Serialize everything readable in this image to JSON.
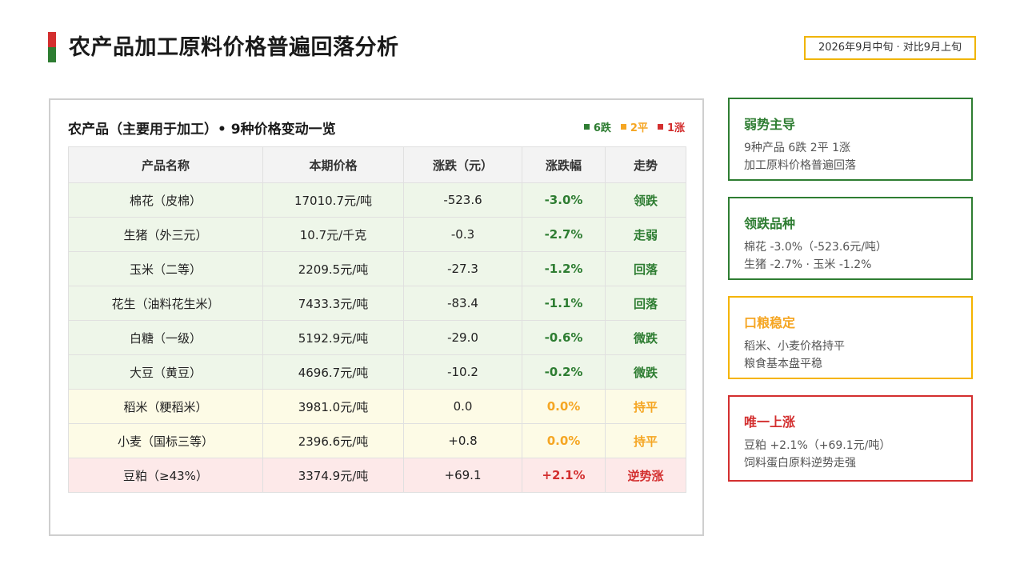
{
  "title": "农产品加工原料价格普遍回落分析",
  "date_badge": "2026年9月中旬 · 对比9月上旬",
  "colors": {
    "down": "#2e7d32",
    "flat": "#f5a623",
    "up": "#d32f2f"
  },
  "panel": {
    "title": "农产品（主要用于加工）• 9种价格变动一览",
    "legend": [
      {
        "label": "6跌",
        "color": "#2e7d32"
      },
      {
        "label": "2平",
        "color": "#f5a623"
      },
      {
        "label": "1涨",
        "color": "#d32f2f"
      }
    ],
    "headers": [
      "产品名称",
      "本期价格",
      "涨跌（元）",
      "涨跌幅",
      "走势"
    ],
    "rows": [
      {
        "name": "棉花（皮棉）",
        "price": "17010.7元/吨",
        "change": "-523.6",
        "pct": "-3.0%",
        "trend": "领跌",
        "status": "down"
      },
      {
        "name": "生猪（外三元）",
        "price": "10.7元/千克",
        "change": "-0.3",
        "pct": "-2.7%",
        "trend": "走弱",
        "status": "down"
      },
      {
        "name": "玉米（二等）",
        "price": "2209.5元/吨",
        "change": "-27.3",
        "pct": "-1.2%",
        "trend": "回落",
        "status": "down"
      },
      {
        "name": "花生（油料花生米）",
        "price": "7433.3元/吨",
        "change": "-83.4",
        "pct": "-1.1%",
        "trend": "回落",
        "status": "down"
      },
      {
        "name": "白糖（一级）",
        "price": "5192.9元/吨",
        "change": "-29.0",
        "pct": "-0.6%",
        "trend": "微跌",
        "status": "down"
      },
      {
        "name": "大豆（黄豆）",
        "price": "4696.7元/吨",
        "change": "-10.2",
        "pct": "-0.2%",
        "trend": "微跌",
        "status": "down"
      },
      {
        "name": "稻米（粳稻米）",
        "price": "3981.0元/吨",
        "change": "0.0",
        "pct": "0.0%",
        "trend": "持平",
        "status": "flat"
      },
      {
        "name": "小麦（国标三等）",
        "price": "2396.6元/吨",
        "change": "+0.8",
        "pct": "0.0%",
        "trend": "持平",
        "status": "flat"
      },
      {
        "name": "豆粕（≥43%）",
        "price": "3374.9元/吨",
        "change": "+69.1",
        "pct": "+2.1%",
        "trend": "逆势涨",
        "status": "up"
      }
    ]
  },
  "cards": [
    {
      "title": "弱势主导",
      "lines": [
        "9种产品 6跌 2平 1涨",
        "加工原料价格普遍回落"
      ],
      "color": "green"
    },
    {
      "title": "领跌品种",
      "lines": [
        "棉花 -3.0%（-523.6元/吨）",
        "生猪 -2.7% · 玉米 -1.2%"
      ],
      "color": "green"
    },
    {
      "title": "口粮稳定",
      "lines": [
        "稻米、小麦价格持平",
        "粮食基本盘平稳"
      ],
      "color": "orange"
    },
    {
      "title": "唯一上涨",
      "lines": [
        "豆粕 +2.1%（+69.1元/吨）",
        "饲料蛋白原料逆势走强"
      ],
      "color": "red"
    }
  ]
}
